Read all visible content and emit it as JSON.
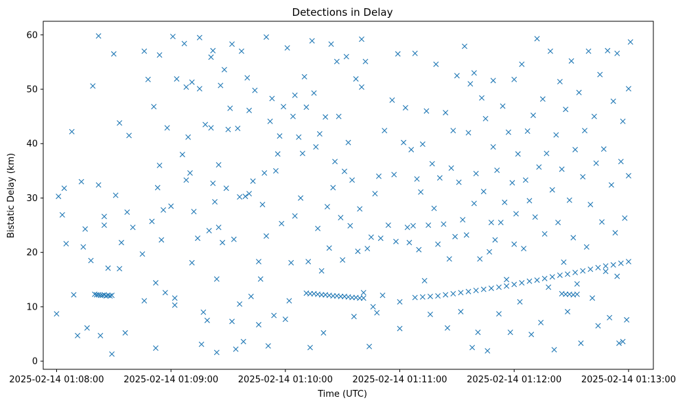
{
  "chart_data": {
    "type": "scatter",
    "title": "Detections in Delay",
    "xlabel": "Time (UTC)",
    "ylabel": "Bistatic Delay (km)",
    "marker": "x",
    "color": "#1f77b4",
    "x_unit": "seconds after 2025-02-14 01:08:00",
    "xlim": [
      -7,
      313
    ],
    "ylim": [
      -1.5,
      62.5
    ],
    "x_ticks": [
      {
        "value": 0,
        "label": "2025-02-14 01:08:00"
      },
      {
        "value": 60,
        "label": "2025-02-14 01:09:00"
      },
      {
        "value": 120,
        "label": "2025-02-14 01:10:00"
      },
      {
        "value": 180,
        "label": "2025-02-14 01:11:00"
      },
      {
        "value": 240,
        "label": "2025-02-14 01:12:00"
      },
      {
        "value": 300,
        "label": "2025-02-14 01:13:00"
      }
    ],
    "y_ticks": [
      {
        "value": 0,
        "label": "0"
      },
      {
        "value": 10,
        "label": "10"
      },
      {
        "value": 20,
        "label": "20"
      },
      {
        "value": 30,
        "label": "30"
      },
      {
        "value": 40,
        "label": "40"
      },
      {
        "value": 50,
        "label": "50"
      },
      {
        "value": 60,
        "label": "60"
      }
    ],
    "tracks": [
      {
        "name": "track-1",
        "x": [
          20,
          21,
          22,
          23,
          24,
          25,
          26,
          27,
          28,
          29
        ],
        "y": [
          12.3,
          12.2,
          12.2,
          12.1,
          12.1,
          12.2,
          12.0,
          12.1,
          12.0,
          12.1
        ]
      },
      {
        "name": "track-2",
        "x": [
          131,
          133,
          135,
          137,
          139,
          141,
          143,
          145,
          147,
          149,
          151,
          153,
          155,
          157,
          159,
          161
        ],
        "y": [
          12.5,
          12.4,
          12.4,
          12.3,
          12.2,
          12.2,
          12.1,
          12.0,
          12.0,
          11.9,
          11.9,
          11.8,
          11.7,
          11.7,
          11.6,
          11.6
        ]
      },
      {
        "name": "track-3",
        "x": [
          188,
          192,
          196,
          200,
          204,
          208,
          212,
          216,
          220,
          224,
          228,
          232,
          236,
          240,
          244,
          248,
          252,
          256,
          260,
          264,
          268,
          272,
          276,
          280,
          284,
          288,
          292,
          296,
          300
        ],
        "y": [
          11.7,
          11.8,
          11.9,
          12.0,
          12.2,
          12.4,
          12.6,
          12.8,
          13.0,
          13.2,
          13.4,
          13.6,
          13.8,
          14.1,
          14.4,
          14.7,
          14.9,
          15.2,
          15.5,
          15.8,
          16.0,
          16.3,
          16.6,
          16.9,
          17.2,
          17.5,
          17.7,
          18.0,
          18.3
        ]
      },
      {
        "name": "track-4",
        "x": [
          265,
          267,
          269,
          271,
          273
        ],
        "y": [
          12.4,
          12.3,
          12.3,
          12.2,
          12.3
        ]
      }
    ],
    "scatter_points": [
      [
        0,
        8.7
      ],
      [
        1,
        30.3
      ],
      [
        3,
        26.9
      ],
      [
        4,
        31.8
      ],
      [
        5,
        21.6
      ],
      [
        8,
        42.2
      ],
      [
        9,
        12.2
      ],
      [
        11,
        4.7
      ],
      [
        13,
        33.0
      ],
      [
        14,
        21.0
      ],
      [
        15,
        24.3
      ],
      [
        16,
        6.1
      ],
      [
        18,
        18.5
      ],
      [
        19,
        50.6
      ],
      [
        22,
        32.4
      ],
      [
        22,
        59.8
      ],
      [
        23,
        4.7
      ],
      [
        25,
        26.6
      ],
      [
        25,
        25.0
      ],
      [
        27,
        17.1
      ],
      [
        29,
        1.3
      ],
      [
        30,
        56.5
      ],
      [
        31,
        30.5
      ],
      [
        33,
        43.8
      ],
      [
        33,
        17.0
      ],
      [
        34,
        21.8
      ],
      [
        36,
        5.2
      ],
      [
        37,
        27.4
      ],
      [
        38,
        41.5
      ],
      [
        40,
        24.6
      ],
      [
        45,
        19.7
      ],
      [
        46,
        11.1
      ],
      [
        46,
        57.0
      ],
      [
        48,
        51.8
      ],
      [
        50,
        25.7
      ],
      [
        51,
        46.8
      ],
      [
        52,
        14.4
      ],
      [
        52,
        2.4
      ],
      [
        53,
        31.9
      ],
      [
        54,
        56.3
      ],
      [
        54,
        36.0
      ],
      [
        55,
        22.3
      ],
      [
        56,
        27.8
      ],
      [
        57,
        12.6
      ],
      [
        58,
        42.9
      ],
      [
        60,
        28.5
      ],
      [
        61,
        59.7
      ],
      [
        62,
        11.6
      ],
      [
        62,
        10.3
      ],
      [
        63,
        51.9
      ],
      [
        66,
        38.0
      ],
      [
        67,
        58.4
      ],
      [
        68,
        50.4
      ],
      [
        68,
        33.3
      ],
      [
        69,
        41.2
      ],
      [
        70,
        34.6
      ],
      [
        71,
        51.3
      ],
      [
        71,
        18.1
      ],
      [
        72,
        27.5
      ],
      [
        74,
        22.6
      ],
      [
        75,
        50.1
      ],
      [
        75,
        59.5
      ],
      [
        76,
        3.1
      ],
      [
        77,
        9.0
      ],
      [
        78,
        43.5
      ],
      [
        79,
        7.5
      ],
      [
        80,
        24.0
      ],
      [
        81,
        55.9
      ],
      [
        81,
        42.9
      ],
      [
        82,
        57.1
      ],
      [
        82,
        32.7
      ],
      [
        83,
        29.3
      ],
      [
        84,
        1.6
      ],
      [
        84,
        15.1
      ],
      [
        85,
        36.1
      ],
      [
        85,
        24.6
      ],
      [
        86,
        50.7
      ],
      [
        87,
        21.8
      ],
      [
        88,
        53.6
      ],
      [
        89,
        31.8
      ],
      [
        90,
        42.6
      ],
      [
        91,
        46.5
      ],
      [
        92,
        7.3
      ],
      [
        92,
        58.3
      ],
      [
        93,
        22.4
      ],
      [
        94,
        2.2
      ],
      [
        95,
        42.8
      ],
      [
        96,
        30.2
      ],
      [
        96,
        10.5
      ],
      [
        97,
        57.0
      ],
      [
        98,
        3.6
      ],
      [
        99,
        30.3
      ],
      [
        100,
        52.1
      ],
      [
        101,
        46.1
      ],
      [
        101,
        30.8
      ],
      [
        102,
        11.9
      ],
      [
        103,
        33.1
      ],
      [
        104,
        49.8
      ],
      [
        106,
        6.7
      ],
      [
        106,
        18.3
      ],
      [
        107,
        15.1
      ],
      [
        108,
        28.8
      ],
      [
        109,
        34.6
      ],
      [
        110,
        59.6
      ],
      [
        110,
        23.0
      ],
      [
        111,
        2.8
      ],
      [
        112,
        44.1
      ],
      [
        113,
        48.3
      ],
      [
        114,
        8.4
      ],
      [
        115,
        35.0
      ],
      [
        116,
        38.1
      ],
      [
        117,
        41.4
      ],
      [
        118,
        25.3
      ],
      [
        119,
        46.8
      ],
      [
        120,
        7.7
      ],
      [
        121,
        57.6
      ],
      [
        122,
        11.1
      ],
      [
        123,
        18.1
      ],
      [
        124,
        45.0
      ],
      [
        125,
        26.7
      ],
      [
        125,
        48.9
      ],
      [
        127,
        41.2
      ],
      [
        128,
        30.0
      ],
      [
        129,
        38.2
      ],
      [
        130,
        52.3
      ],
      [
        131,
        46.7
      ],
      [
        132,
        18.3
      ],
      [
        133,
        2.5
      ],
      [
        134,
        58.9
      ],
      [
        135,
        49.3
      ],
      [
        136,
        39.4
      ],
      [
        137,
        24.4
      ],
      [
        138,
        41.8
      ],
      [
        139,
        16.6
      ],
      [
        140,
        5.2
      ],
      [
        141,
        44.9
      ],
      [
        142,
        28.4
      ],
      [
        143,
        20.8
      ],
      [
        144,
        58.3
      ],
      [
        145,
        31.9
      ],
      [
        146,
        36.7
      ],
      [
        147,
        55.1
      ],
      [
        148,
        45.0
      ],
      [
        149,
        26.4
      ],
      [
        150,
        18.6
      ],
      [
        151,
        34.9
      ],
      [
        152,
        56.0
      ],
      [
        153,
        40.2
      ],
      [
        154,
        24.9
      ],
      [
        155,
        33.3
      ],
      [
        156,
        8.2
      ],
      [
        157,
        51.9
      ],
      [
        158,
        20.2
      ],
      [
        159,
        28.0
      ],
      [
        160,
        50.4
      ],
      [
        160,
        59.2
      ],
      [
        161,
        12.6
      ],
      [
        162,
        55.1
      ],
      [
        163,
        20.7
      ],
      [
        164,
        2.7
      ],
      [
        165,
        22.8
      ],
      [
        166,
        10.0
      ],
      [
        167,
        30.8
      ],
      [
        168,
        8.9
      ],
      [
        169,
        34.0
      ],
      [
        170,
        22.6
      ],
      [
        171,
        12.1
      ],
      [
        172,
        42.4
      ],
      [
        174,
        25.0
      ],
      [
        176,
        48.0
      ],
      [
        177,
        34.3
      ],
      [
        178,
        22.0
      ],
      [
        179,
        56.5
      ],
      [
        180,
        6.0
      ],
      [
        180,
        10.9
      ],
      [
        182,
        40.2
      ],
      [
        183,
        46.6
      ],
      [
        184,
        24.6
      ],
      [
        185,
        21.8
      ],
      [
        186,
        38.9
      ],
      [
        187,
        24.9
      ],
      [
        188,
        56.6
      ],
      [
        189,
        33.5
      ],
      [
        190,
        20.5
      ],
      [
        191,
        31.1
      ],
      [
        192,
        39.9
      ],
      [
        193,
        14.8
      ],
      [
        194,
        46.0
      ],
      [
        195,
        25.0
      ],
      [
        196,
        8.6
      ],
      [
        197,
        36.3
      ],
      [
        198,
        28.1
      ],
      [
        199,
        54.6
      ],
      [
        200,
        21.5
      ],
      [
        201,
        33.7
      ],
      [
        203,
        25.2
      ],
      [
        204,
        45.7
      ],
      [
        205,
        6.1
      ],
      [
        206,
        18.8
      ],
      [
        207,
        35.5
      ],
      [
        208,
        42.4
      ],
      [
        209,
        22.9
      ],
      [
        210,
        52.5
      ],
      [
        211,
        32.9
      ],
      [
        212,
        9.1
      ],
      [
        213,
        26.0
      ],
      [
        214,
        57.9
      ],
      [
        215,
        23.2
      ],
      [
        216,
        42.0
      ],
      [
        217,
        51.0
      ],
      [
        218,
        2.5
      ],
      [
        219,
        29.0
      ],
      [
        219,
        53.0
      ],
      [
        220,
        34.5
      ],
      [
        221,
        5.3
      ],
      [
        222,
        18.8
      ],
      [
        223,
        48.4
      ],
      [
        224,
        31.2
      ],
      [
        225,
        44.6
      ],
      [
        226,
        1.9
      ],
      [
        227,
        20.1
      ],
      [
        228,
        25.5
      ],
      [
        229,
        51.6
      ],
      [
        229,
        39.4
      ],
      [
        230,
        22.3
      ],
      [
        231,
        35.1
      ],
      [
        232,
        8.7
      ],
      [
        233,
        25.5
      ],
      [
        234,
        46.9
      ],
      [
        235,
        29.2
      ],
      [
        236,
        15.0
      ],
      [
        237,
        42.1
      ],
      [
        238,
        5.3
      ],
      [
        239,
        32.8
      ],
      [
        240,
        51.8
      ],
      [
        240,
        21.5
      ],
      [
        241,
        27.1
      ],
      [
        242,
        38.1
      ],
      [
        243,
        10.9
      ],
      [
        244,
        54.6
      ],
      [
        245,
        20.7
      ],
      [
        246,
        33.3
      ],
      [
        247,
        42.3
      ],
      [
        248,
        29.5
      ],
      [
        249,
        4.9
      ],
      [
        250,
        45.2
      ],
      [
        251,
        26.5
      ],
      [
        252,
        59.3
      ],
      [
        253,
        35.7
      ],
      [
        254,
        7.1
      ],
      [
        255,
        48.2
      ],
      [
        256,
        23.4
      ],
      [
        257,
        38.2
      ],
      [
        258,
        13.6
      ],
      [
        259,
        57.0
      ],
      [
        260,
        31.5
      ],
      [
        261,
        2.1
      ],
      [
        262,
        41.6
      ],
      [
        263,
        25.5
      ],
      [
        264,
        51.4
      ],
      [
        265,
        35.3
      ],
      [
        266,
        18.2
      ],
      [
        267,
        46.3
      ],
      [
        268,
        9.1
      ],
      [
        269,
        29.6
      ],
      [
        270,
        55.2
      ],
      [
        271,
        22.7
      ],
      [
        272,
        38.9
      ],
      [
        273,
        14.2
      ],
      [
        274,
        49.4
      ],
      [
        275,
        3.3
      ],
      [
        276,
        33.9
      ],
      [
        277,
        42.4
      ],
      [
        278,
        21.0
      ],
      [
        279,
        57.0
      ],
      [
        280,
        28.8
      ],
      [
        281,
        11.6
      ],
      [
        282,
        45.0
      ],
      [
        283,
        36.4
      ],
      [
        284,
        6.5
      ],
      [
        285,
        52.7
      ],
      [
        286,
        25.6
      ],
      [
        287,
        39.0
      ],
      [
        288,
        16.5
      ],
      [
        289,
        57.1
      ],
      [
        290,
        8.0
      ],
      [
        291,
        32.4
      ],
      [
        292,
        47.8
      ],
      [
        293,
        23.6
      ],
      [
        294,
        56.6
      ],
      [
        295,
        3.3
      ],
      [
        296,
        36.7
      ],
      [
        297,
        44.1
      ],
      [
        298,
        26.3
      ],
      [
        299,
        7.6
      ],
      [
        300,
        50.1
      ],
      [
        300,
        34.1
      ],
      [
        301,
        58.7
      ],
      [
        294,
        15.6
      ],
      [
        297,
        3.6
      ]
    ]
  }
}
